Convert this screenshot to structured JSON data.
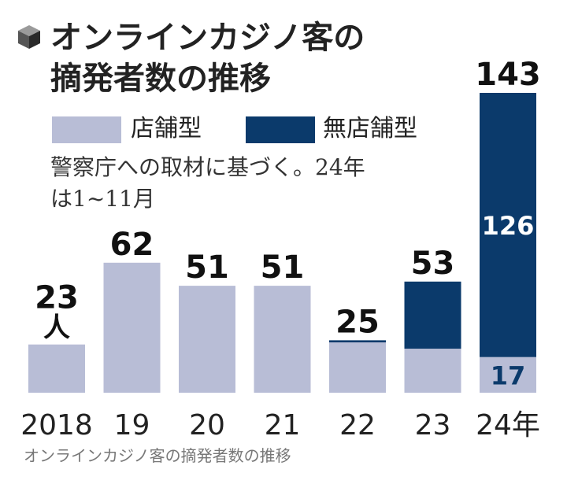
{
  "title_line1": "オンラインカジノ客の",
  "title_line2": "摘発者数の推移",
  "icon": "cube-icon",
  "legend": [
    {
      "label": "店舗型",
      "color": "#b8bdd6"
    },
    {
      "label": "無店舗型",
      "color": "#0b3a6b"
    }
  ],
  "note_line1": "警察庁への取材に基づく。24年",
  "note_line2": "は1~11月",
  "caption": "オンラインカジノ客の摘発者数の推移",
  "chart_data": {
    "type": "bar",
    "stacked": true,
    "categories": [
      "2018",
      "19",
      "20",
      "21",
      "22",
      "23",
      "24年"
    ],
    "series": [
      {
        "name": "店舗型",
        "color": "#b8bdd6",
        "values": [
          23,
          62,
          51,
          51,
          24,
          21,
          17
        ]
      },
      {
        "name": "無店舗型",
        "color": "#0b3a6b",
        "values": [
          0,
          0,
          0,
          0,
          1,
          32,
          126
        ]
      }
    ],
    "totals": [
      23,
      62,
      51,
      51,
      25,
      53,
      143
    ],
    "unit": "人",
    "inside_labels": [
      {
        "category_index": 6,
        "series_index": 1,
        "text": "126"
      },
      {
        "category_index": 6,
        "series_index": 0,
        "text": "17"
      }
    ],
    "ylim": [
      0,
      143
    ]
  }
}
